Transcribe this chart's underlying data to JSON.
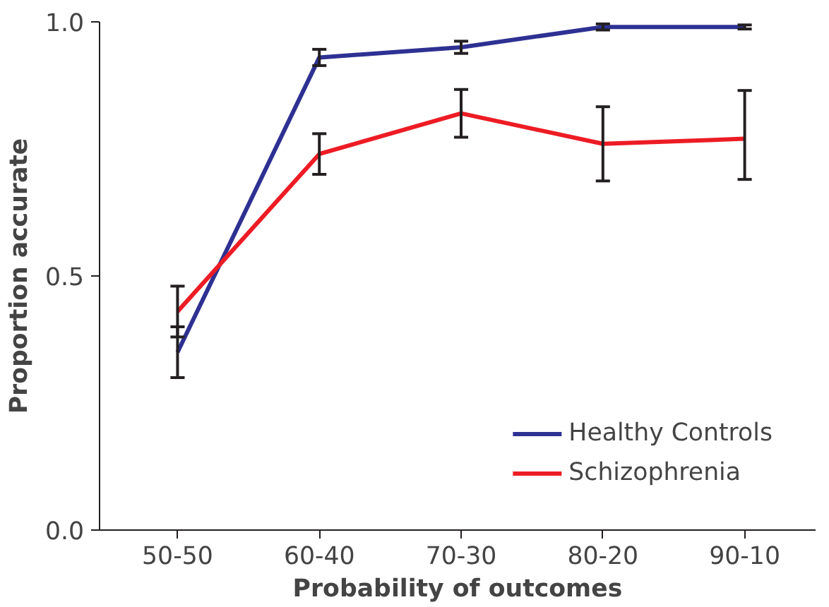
{
  "chart_data": {
    "type": "line",
    "xlabel": "Probability of outcomes",
    "ylabel": "Proportion accurate",
    "categories": [
      "50-50",
      "60-40",
      "70-30",
      "80-20",
      "90-10"
    ],
    "series": [
      {
        "name": "Healthy Controls",
        "color": "#2e3192",
        "values": [
          0.35,
          0.93,
          0.95,
          0.99,
          0.99
        ],
        "errors": [
          0.05,
          0.016,
          0.012,
          0.006,
          0.004
        ]
      },
      {
        "name": "Schizophrenia",
        "color": "#ed1c24",
        "values": [
          0.43,
          0.74,
          0.82,
          0.76,
          0.77
        ],
        "errors": [
          0.05,
          0.04,
          0.047,
          0.073,
          [
            0.69,
            0.865
          ]
        ]
      }
    ],
    "ylim": [
      0,
      1
    ],
    "yticks": [
      {
        "value": 0,
        "label": "0.0"
      },
      {
        "value": 0.5,
        "label": "0.5"
      },
      {
        "value": 1,
        "label": "1.0"
      }
    ],
    "grid": false,
    "legend": "bottom right",
    "marker": "none",
    "line_style": "solid"
  }
}
